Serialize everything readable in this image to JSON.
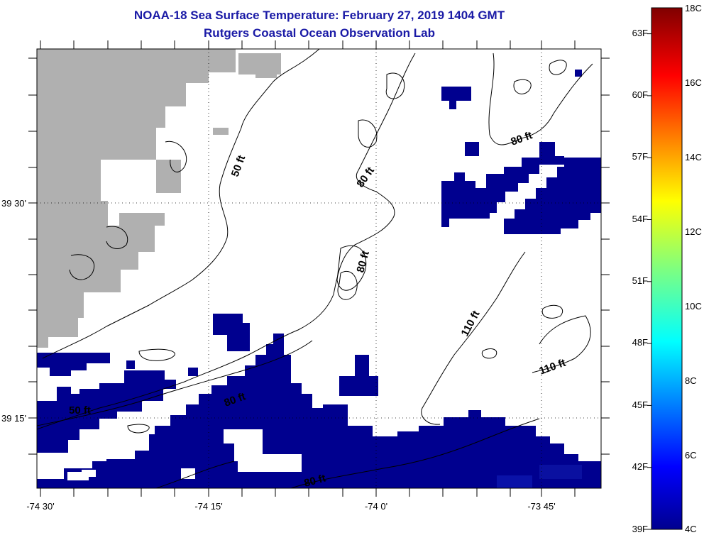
{
  "title": "NOAA-18 Sea Surface Temperature:  February 27, 2019 1404 GMT",
  "subtitle": "Rutgers Coastal Ocean Observation Lab",
  "map": {
    "lat_labels": [
      "39 30'",
      "39 15'"
    ],
    "lon_labels": [
      "-74 30'",
      "-74 15'",
      "-74 0'",
      "-73 45'"
    ],
    "depth_labels": [
      "50 ft",
      "80 ft",
      "80 ft",
      "80 ft",
      "110 ft",
      "110 ft",
      "50 ft",
      "80 ft",
      "80 ft"
    ],
    "colors": {
      "land": "#b0b0b0",
      "cold_water": "#00008f",
      "contour": "#000000"
    }
  },
  "colorbar": {
    "fahrenheit_labels": [
      "63F",
      "60F",
      "57F",
      "54F",
      "51F",
      "48F",
      "45F",
      "42F",
      "39F"
    ],
    "celsius_labels": [
      "18C",
      "16C",
      "14C",
      "12C",
      "10C",
      "8C",
      "6C",
      "4C"
    ],
    "colormap": "jet",
    "range_c": [
      4,
      18
    ],
    "range_f": [
      39,
      64.4
    ]
  }
}
